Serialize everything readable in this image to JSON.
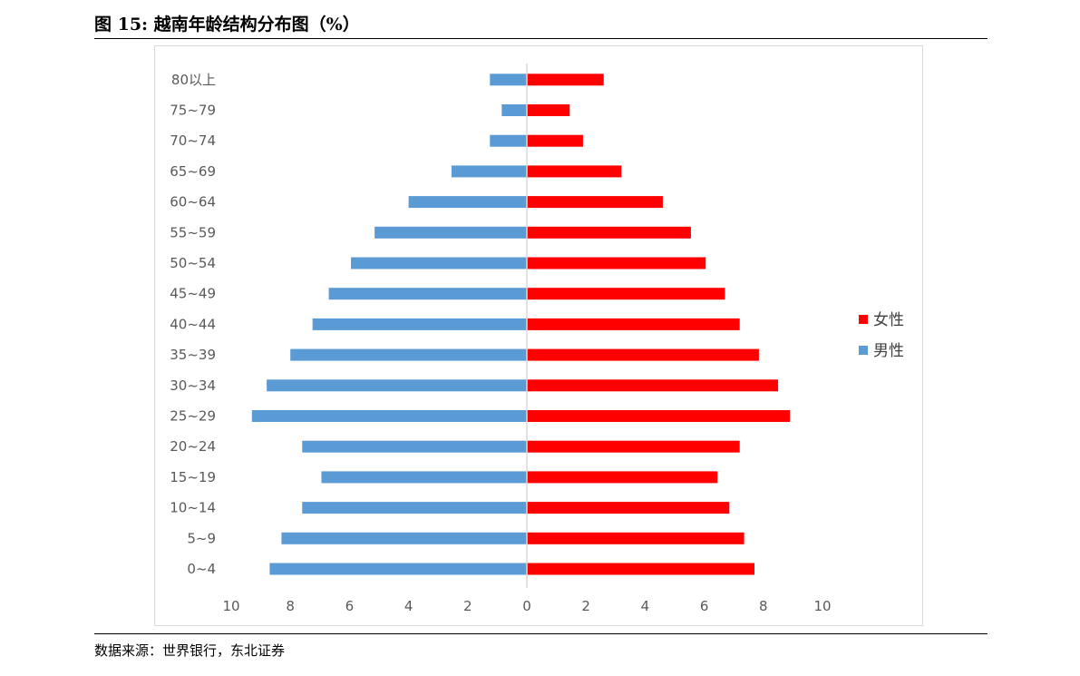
{
  "figure": {
    "title": "图 15: 越南年龄结构分布图（%）",
    "source": "数据来源：世界银行，东北证券"
  },
  "colors": {
    "female": "#ff0000",
    "male": "#5b9bd5",
    "axis": "#d9d9d9"
  },
  "chart_data": {
    "type": "bar",
    "orientation": "horizontal",
    "layout": "population-pyramid",
    "title": "",
    "categories": [
      "0~4",
      "5~9",
      "10~14",
      "15~19",
      "20~24",
      "25~29",
      "30~34",
      "35~39",
      "40~44",
      "45~49",
      "50~54",
      "55~59",
      "60~64",
      "65~69",
      "70~74",
      "75~79",
      "80以上"
    ],
    "series": [
      {
        "name": "女性",
        "direction": "right",
        "values": [
          7.7,
          7.35,
          6.85,
          6.45,
          7.2,
          8.9,
          8.5,
          7.85,
          7.2,
          6.7,
          6.05,
          5.55,
          4.6,
          3.2,
          1.9,
          1.45,
          2.6
        ]
      },
      {
        "name": "男性",
        "direction": "left",
        "values": [
          8.7,
          8.3,
          7.6,
          6.95,
          7.6,
          9.3,
          8.8,
          8.0,
          7.25,
          6.7,
          5.95,
          5.15,
          4.0,
          2.55,
          1.25,
          0.85,
          1.25
        ]
      }
    ],
    "x_ticks": [
      "10",
      "8",
      "6",
      "4",
      "2",
      "0",
      "2",
      "4",
      "6",
      "8",
      "10"
    ],
    "xlim": [
      -10,
      10
    ],
    "grid": false,
    "legend_position": "right"
  }
}
